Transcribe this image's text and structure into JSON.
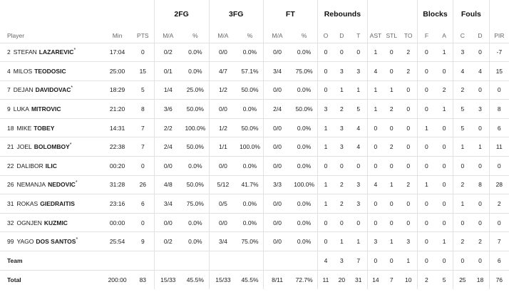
{
  "groups": {
    "fg2": "2FG",
    "fg3": "3FG",
    "ft": "FT",
    "rebounds": "Rebounds",
    "blocks": "Blocks",
    "fouls": "Fouls"
  },
  "columns": {
    "player": "Player",
    "min": "Min",
    "pts": "PTS",
    "fg2_ma": "M/A",
    "fg2_pct": "%",
    "fg3_ma": "M/A",
    "fg3_pct": "%",
    "ft_ma": "M/A",
    "ft_pct": "%",
    "reb_o": "O",
    "reb_d": "D",
    "reb_t": "T",
    "ast": "AST",
    "stl": "STL",
    "to": "TO",
    "blk_f": "F",
    "blk_a": "A",
    "foul_c": "C",
    "foul_d": "D",
    "pir": "PIR"
  },
  "players": [
    {
      "num": "2",
      "first": "STEFAN",
      "last": "LAZAREVIC",
      "starter": "*",
      "min": "17:04",
      "pts": "0",
      "fg2_ma": "0/2",
      "fg2_pct": "0.0%",
      "fg3_ma": "0/0",
      "fg3_pct": "0.0%",
      "ft_ma": "0/0",
      "ft_pct": "0.0%",
      "reb_o": "0",
      "reb_d": "0",
      "reb_t": "0",
      "ast": "1",
      "stl": "0",
      "to": "2",
      "blk_f": "0",
      "blk_a": "1",
      "foul_c": "3",
      "foul_d": "0",
      "pir": "-7"
    },
    {
      "num": "4",
      "first": "MILOS",
      "last": "TEODOSIC",
      "starter": "",
      "min": "25:00",
      "pts": "15",
      "fg2_ma": "0/1",
      "fg2_pct": "0.0%",
      "fg3_ma": "4/7",
      "fg3_pct": "57.1%",
      "ft_ma": "3/4",
      "ft_pct": "75.0%",
      "reb_o": "0",
      "reb_d": "3",
      "reb_t": "3",
      "ast": "4",
      "stl": "0",
      "to": "2",
      "blk_f": "0",
      "blk_a": "0",
      "foul_c": "4",
      "foul_d": "4",
      "pir": "15"
    },
    {
      "num": "7",
      "first": "DEJAN",
      "last": "DAVIDOVAC",
      "starter": "*",
      "min": "18:29",
      "pts": "5",
      "fg2_ma": "1/4",
      "fg2_pct": "25.0%",
      "fg3_ma": "1/2",
      "fg3_pct": "50.0%",
      "ft_ma": "0/0",
      "ft_pct": "0.0%",
      "reb_o": "0",
      "reb_d": "1",
      "reb_t": "1",
      "ast": "1",
      "stl": "1",
      "to": "0",
      "blk_f": "0",
      "blk_a": "2",
      "foul_c": "2",
      "foul_d": "0",
      "pir": "0"
    },
    {
      "num": "9",
      "first": "LUKA",
      "last": "MITROVIC",
      "starter": "",
      "min": "21:20",
      "pts": "8",
      "fg2_ma": "3/6",
      "fg2_pct": "50.0%",
      "fg3_ma": "0/0",
      "fg3_pct": "0.0%",
      "ft_ma": "2/4",
      "ft_pct": "50.0%",
      "reb_o": "3",
      "reb_d": "2",
      "reb_t": "5",
      "ast": "1",
      "stl": "2",
      "to": "0",
      "blk_f": "0",
      "blk_a": "1",
      "foul_c": "5",
      "foul_d": "3",
      "pir": "8"
    },
    {
      "num": "18",
      "first": "MIKE",
      "last": "TOBEY",
      "starter": "",
      "min": "14:31",
      "pts": "7",
      "fg2_ma": "2/2",
      "fg2_pct": "100.0%",
      "fg3_ma": "1/2",
      "fg3_pct": "50.0%",
      "ft_ma": "0/0",
      "ft_pct": "0.0%",
      "reb_o": "1",
      "reb_d": "3",
      "reb_t": "4",
      "ast": "0",
      "stl": "0",
      "to": "0",
      "blk_f": "1",
      "blk_a": "0",
      "foul_c": "5",
      "foul_d": "0",
      "pir": "6"
    },
    {
      "num": "21",
      "first": "JOEL",
      "last": "BOLOMBOY",
      "starter": "*",
      "min": "22:38",
      "pts": "7",
      "fg2_ma": "2/4",
      "fg2_pct": "50.0%",
      "fg3_ma": "1/1",
      "fg3_pct": "100.0%",
      "ft_ma": "0/0",
      "ft_pct": "0.0%",
      "reb_o": "1",
      "reb_d": "3",
      "reb_t": "4",
      "ast": "0",
      "stl": "2",
      "to": "0",
      "blk_f": "0",
      "blk_a": "0",
      "foul_c": "1",
      "foul_d": "1",
      "pir": "11"
    },
    {
      "num": "22",
      "first": "DALIBOR",
      "last": "ILIC",
      "starter": "",
      "min": "00:20",
      "pts": "0",
      "fg2_ma": "0/0",
      "fg2_pct": "0.0%",
      "fg3_ma": "0/0",
      "fg3_pct": "0.0%",
      "ft_ma": "0/0",
      "ft_pct": "0.0%",
      "reb_o": "0",
      "reb_d": "0",
      "reb_t": "0",
      "ast": "0",
      "stl": "0",
      "to": "0",
      "blk_f": "0",
      "blk_a": "0",
      "foul_c": "0",
      "foul_d": "0",
      "pir": "0"
    },
    {
      "num": "26",
      "first": "NEMANJA",
      "last": "NEDOVIC",
      "starter": "*",
      "min": "31:28",
      "pts": "26",
      "fg2_ma": "4/8",
      "fg2_pct": "50.0%",
      "fg3_ma": "5/12",
      "fg3_pct": "41.7%",
      "ft_ma": "3/3",
      "ft_pct": "100.0%",
      "reb_o": "1",
      "reb_d": "2",
      "reb_t": "3",
      "ast": "4",
      "stl": "1",
      "to": "2",
      "blk_f": "1",
      "blk_a": "0",
      "foul_c": "2",
      "foul_d": "8",
      "pir": "28"
    },
    {
      "num": "31",
      "first": "ROKAS",
      "last": "GIEDRAITIS",
      "starter": "",
      "min": "23:16",
      "pts": "6",
      "fg2_ma": "3/4",
      "fg2_pct": "75.0%",
      "fg3_ma": "0/5",
      "fg3_pct": "0.0%",
      "ft_ma": "0/0",
      "ft_pct": "0.0%",
      "reb_o": "1",
      "reb_d": "2",
      "reb_t": "3",
      "ast": "0",
      "stl": "0",
      "to": "0",
      "blk_f": "0",
      "blk_a": "0",
      "foul_c": "1",
      "foul_d": "0",
      "pir": "2"
    },
    {
      "num": "32",
      "first": "OGNJEN",
      "last": "KUZMIC",
      "starter": "",
      "min": "00:00",
      "pts": "0",
      "fg2_ma": "0/0",
      "fg2_pct": "0.0%",
      "fg3_ma": "0/0",
      "fg3_pct": "0.0%",
      "ft_ma": "0/0",
      "ft_pct": "0.0%",
      "reb_o": "0",
      "reb_d": "0",
      "reb_t": "0",
      "ast": "0",
      "stl": "0",
      "to": "0",
      "blk_f": "0",
      "blk_a": "0",
      "foul_c": "0",
      "foul_d": "0",
      "pir": "0"
    },
    {
      "num": "99",
      "first": "YAGO",
      "last": "DOS SANTOS",
      "starter": "*",
      "min": "25:54",
      "pts": "9",
      "fg2_ma": "0/2",
      "fg2_pct": "0.0%",
      "fg3_ma": "3/4",
      "fg3_pct": "75.0%",
      "ft_ma": "0/0",
      "ft_pct": "0.0%",
      "reb_o": "0",
      "reb_d": "1",
      "reb_t": "1",
      "ast": "3",
      "stl": "1",
      "to": "3",
      "blk_f": "0",
      "blk_a": "1",
      "foul_c": "2",
      "foul_d": "2",
      "pir": "7"
    }
  ],
  "team": {
    "label": "Team",
    "reb_o": "4",
    "reb_d": "3",
    "reb_t": "7",
    "ast": "0",
    "stl": "0",
    "to": "1",
    "blk_f": "0",
    "blk_a": "0",
    "foul_c": "0",
    "foul_d": "0",
    "pir": "6"
  },
  "total": {
    "label": "Total",
    "min": "200:00",
    "pts": "83",
    "fg2_ma": "15/33",
    "fg2_pct": "45.5%",
    "fg3_ma": "15/33",
    "fg3_pct": "45.5%",
    "ft_ma": "8/11",
    "ft_pct": "72.7%",
    "reb_o": "11",
    "reb_d": "20",
    "reb_t": "31",
    "ast": "14",
    "stl": "7",
    "to": "10",
    "blk_f": "2",
    "blk_a": "5",
    "foul_c": "25",
    "foul_d": "18",
    "pir": "76"
  }
}
